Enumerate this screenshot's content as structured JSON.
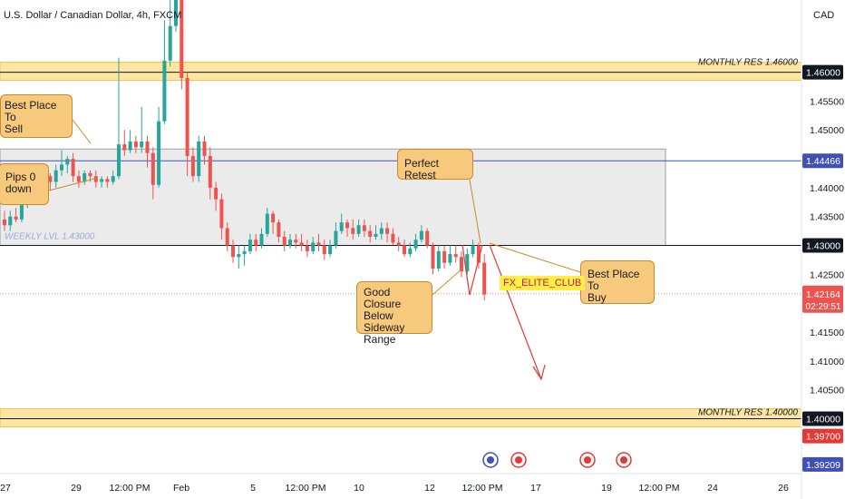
{
  "header": {
    "symbol_title": "U.S. Dollar / Canadian Dollar, 4h, FXCM"
  },
  "currency_label": "CAD",
  "colors": {
    "bull": "#26a69a",
    "bear": "#ef5350",
    "zone_fill": "#ebebeb",
    "res_band": "#fde6a3",
    "res_border": "#f3c24c",
    "retest_line": "#3f51b5",
    "arrow": "#e53935",
    "callout_fill": "#f7c97c"
  },
  "chart_data": {
    "type": "candlestick",
    "title": "U.S. Dollar / Canadian Dollar, 4h, FXCM",
    "ylim": [
      1.3905,
      1.4725
    ],
    "y_ticks": [
      "1.45500",
      "1.45000",
      "1.44000",
      "1.43500",
      "1.42500",
      "1.41500",
      "1.41000",
      "1.40500"
    ],
    "x_ticks": [
      "27",
      "29",
      "12:00 PM",
      "Feb",
      "5",
      "12:00 PM",
      "10",
      "12",
      "12:00 PM",
      "17",
      "19",
      "12:00 PM",
      "24",
      "26"
    ],
    "levels": [
      {
        "name": "MONTHLY RES 1.46000",
        "value": 1.46,
        "price_label": "1.46000"
      },
      {
        "name": "MONTHLY RES 1.40000",
        "value": 1.4,
        "price_label": "1.40000"
      },
      {
        "name": "WEEKLY LVL 1.43000",
        "value": 1.43,
        "price_label": "1.43000"
      },
      {
        "name": "retest",
        "value": 1.44466,
        "price_label": "1.44466"
      },
      {
        "name": "current",
        "value": 1.42164,
        "price_label": "1.42164",
        "countdown": "02:29:51"
      },
      {
        "name": "low-1",
        "value": 1.397,
        "price_label": "1.39700"
      },
      {
        "name": "low-2",
        "value": 1.39209,
        "price_label": "1.39209"
      }
    ],
    "zone": {
      "top": 1.4467,
      "bottom": 1.43
    },
    "candles": [
      [
        1.4345,
        1.4335,
        1.436,
        1.4325
      ],
      [
        1.4335,
        1.435,
        1.436,
        1.4325
      ],
      [
        1.435,
        1.4345,
        1.4365,
        1.434
      ],
      [
        1.4345,
        1.437,
        1.4375,
        1.434
      ],
      [
        1.437,
        1.4395,
        1.44,
        1.4365
      ],
      [
        1.4395,
        1.438,
        1.4405,
        1.437
      ],
      [
        1.438,
        1.4405,
        1.441,
        1.4375
      ],
      [
        1.4405,
        1.442,
        1.443,
        1.44
      ],
      [
        1.442,
        1.441,
        1.4425,
        1.4395
      ],
      [
        1.441,
        1.443,
        1.444,
        1.44
      ],
      [
        1.443,
        1.444,
        1.4465,
        1.442
      ],
      [
        1.444,
        1.445,
        1.4455,
        1.4425
      ],
      [
        1.445,
        1.442,
        1.446,
        1.441
      ],
      [
        1.442,
        1.441,
        1.443,
        1.44
      ],
      [
        1.441,
        1.4425,
        1.443,
        1.4405
      ],
      [
        1.4425,
        1.442,
        1.443,
        1.441
      ],
      [
        1.442,
        1.441,
        1.443,
        1.44
      ],
      [
        1.441,
        1.4415,
        1.442,
        1.44
      ],
      [
        1.4415,
        1.441,
        1.442,
        1.44
      ],
      [
        1.441,
        1.442,
        1.443,
        1.4405
      ],
      [
        1.442,
        1.4475,
        1.4625,
        1.4415
      ],
      [
        1.4475,
        1.4465,
        1.45,
        1.4455
      ],
      [
        1.4465,
        1.448,
        1.45,
        1.446
      ],
      [
        1.448,
        1.447,
        1.449,
        1.446
      ],
      [
        1.447,
        1.448,
        1.454,
        1.446
      ],
      [
        1.448,
        1.446,
        1.449,
        1.4435
      ],
      [
        1.446,
        1.4405,
        1.447,
        1.438
      ],
      [
        1.4405,
        1.4515,
        1.454,
        1.44
      ],
      [
        1.4515,
        1.462,
        1.469,
        1.451
      ],
      [
        1.462,
        1.468,
        1.4765,
        1.461
      ],
      [
        1.468,
        1.478,
        1.481,
        1.467
      ],
      [
        1.478,
        1.459,
        1.479,
        1.457
      ],
      [
        1.459,
        1.4455,
        1.46,
        1.442
      ],
      [
        1.4455,
        1.442,
        1.447,
        1.441
      ],
      [
        1.442,
        1.448,
        1.449,
        1.441
      ],
      [
        1.448,
        1.4455,
        1.449,
        1.444
      ],
      [
        1.4455,
        1.44,
        1.447,
        1.438
      ],
      [
        1.44,
        1.438,
        1.441,
        1.436
      ],
      [
        1.438,
        1.433,
        1.439,
        1.431
      ],
      [
        1.433,
        1.43,
        1.434,
        1.429
      ],
      [
        1.43,
        1.428,
        1.431,
        1.427
      ],
      [
        1.428,
        1.4285,
        1.43,
        1.426
      ],
      [
        1.4285,
        1.429,
        1.43,
        1.4265
      ],
      [
        1.429,
        1.431,
        1.432,
        1.4285
      ],
      [
        1.431,
        1.43,
        1.432,
        1.429
      ],
      [
        1.43,
        1.432,
        1.433,
        1.4295
      ],
      [
        1.432,
        1.4355,
        1.4365,
        1.4315
      ],
      [
        1.4355,
        1.434,
        1.436,
        1.432
      ],
      [
        1.434,
        1.4315,
        1.4345,
        1.4305
      ],
      [
        1.4315,
        1.43,
        1.4325,
        1.429
      ],
      [
        1.43,
        1.431,
        1.432,
        1.4295
      ],
      [
        1.431,
        1.4305,
        1.432,
        1.4295
      ],
      [
        1.4305,
        1.43,
        1.432,
        1.429
      ],
      [
        1.43,
        1.429,
        1.431,
        1.428
      ],
      [
        1.429,
        1.4305,
        1.4315,
        1.4285
      ],
      [
        1.4305,
        1.43,
        1.432,
        1.429
      ],
      [
        1.43,
        1.4285,
        1.431,
        1.4275
      ],
      [
        1.4285,
        1.43,
        1.431,
        1.428
      ],
      [
        1.43,
        1.4325,
        1.434,
        1.4295
      ],
      [
        1.4325,
        1.434,
        1.4355,
        1.432
      ],
      [
        1.434,
        1.433,
        1.4345,
        1.4315
      ],
      [
        1.433,
        1.432,
        1.4345,
        1.431
      ],
      [
        1.432,
        1.4335,
        1.4345,
        1.4315
      ],
      [
        1.4335,
        1.4325,
        1.4345,
        1.4315
      ],
      [
        1.4325,
        1.4315,
        1.4335,
        1.4305
      ],
      [
        1.4315,
        1.432,
        1.4335,
        1.431
      ],
      [
        1.432,
        1.433,
        1.434,
        1.431
      ],
      [
        1.433,
        1.432,
        1.434,
        1.4305
      ],
      [
        1.432,
        1.4305,
        1.433,
        1.43
      ],
      [
        1.4305,
        1.43,
        1.4315,
        1.429
      ],
      [
        1.43,
        1.4285,
        1.431,
        1.428
      ],
      [
        1.4285,
        1.4295,
        1.4305,
        1.428
      ],
      [
        1.4295,
        1.431,
        1.432,
        1.429
      ],
      [
        1.431,
        1.4325,
        1.4335,
        1.4305
      ],
      [
        1.4325,
        1.43,
        1.433,
        1.4295
      ],
      [
        1.43,
        1.426,
        1.4305,
        1.425
      ],
      [
        1.426,
        1.429,
        1.43,
        1.4255
      ],
      [
        1.429,
        1.427,
        1.43,
        1.426
      ],
      [
        1.427,
        1.4285,
        1.43,
        1.4265
      ],
      [
        1.4285,
        1.428,
        1.43,
        1.427
      ],
      [
        1.428,
        1.4255,
        1.429,
        1.4245
      ],
      [
        1.4255,
        1.4285,
        1.4295,
        1.425
      ],
      [
        1.4285,
        1.43,
        1.431,
        1.428
      ],
      [
        1.43,
        1.427,
        1.4305,
        1.426
      ],
      [
        1.427,
        1.4215,
        1.4285,
        1.4205
      ]
    ]
  },
  "annotations": {
    "weekly_lvl": "WEEKLY LVL 1.43000",
    "monthly_top": "MONTHLY RES 1.46000",
    "monthly_bottom": "MONTHLY RES 1.40000",
    "callout_sell_1": "Best Place To",
    "callout_sell_2": "Sell",
    "callout_pips_1": "Pips 0",
    "callout_pips_2": "down",
    "callout_retest": "Perfect Retest",
    "callout_closure_1": "Good Closure",
    "callout_closure_2": "Below Sideway",
    "callout_closure_3": "Range",
    "callout_buy_1": "Best Place To",
    "callout_buy_2": "Buy",
    "brand_tag": "FX_ELITE_CLUB"
  }
}
